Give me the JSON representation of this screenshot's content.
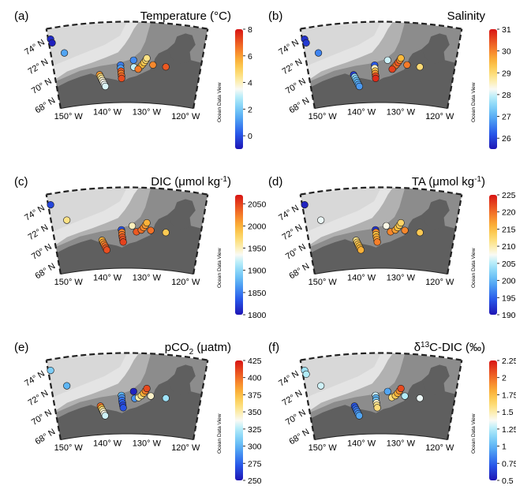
{
  "figure": {
    "watermark": "Ocean Data View",
    "lat_ticks": [
      "74° N",
      "72° N",
      "70° N",
      "68° N"
    ],
    "lon_ticks": [
      "150° W",
      "140° W",
      "130° W",
      "120° W"
    ],
    "colors": {
      "land": "#5f5f5f",
      "shelf": "#8c8c8c",
      "deep": "#e4e4e4",
      "frame": "#222222"
    }
  },
  "chart_data": [
    {
      "type": "scatter",
      "panel": "(a)",
      "title": "Temperature (°C)",
      "colorbar": {
        "min": -1,
        "max": 8,
        "ticks": [
          0,
          2,
          4,
          6,
          8
        ]
      },
      "stations": [
        {
          "lon": -151.5,
          "lat": 74.1,
          "value": -0.6
        },
        {
          "lon": -151.3,
          "lat": 73.7,
          "value": -0.8
        },
        {
          "lon": -149.0,
          "lat": 72.5,
          "value": 1.3
        },
        {
          "lon": -141.5,
          "lat": 69.9,
          "value": 6.0
        },
        {
          "lon": -141.3,
          "lat": 69.7,
          "value": 4.6
        },
        {
          "lon": -141.1,
          "lat": 69.5,
          "value": 4.2
        },
        {
          "lon": -140.9,
          "lat": 69.3,
          "value": 3.8
        },
        {
          "lon": -140.7,
          "lat": 69.1,
          "value": 3.6
        },
        {
          "lon": -140.5,
          "lat": 68.9,
          "value": 3.4
        },
        {
          "lon": -140.3,
          "lat": 68.7,
          "value": 3.2
        },
        {
          "lon": -136.5,
          "lat": 70.8,
          "value": 0.7
        },
        {
          "lon": -136.5,
          "lat": 70.5,
          "value": 1.2
        },
        {
          "lon": -136.4,
          "lat": 70.2,
          "value": 7.0
        },
        {
          "lon": -136.4,
          "lat": 69.95,
          "value": 6.5
        },
        {
          "lon": -136.3,
          "lat": 69.7,
          "value": 6.8
        },
        {
          "lon": -136.3,
          "lat": 69.45,
          "value": 7.2
        },
        {
          "lon": -133.5,
          "lat": 71.3,
          "value": 0.9
        },
        {
          "lon": -133.4,
          "lat": 70.6,
          "value": 3.0
        },
        {
          "lon": -132.0,
          "lat": 70.6,
          "value": 5.0
        },
        {
          "lon": -131.5,
          "lat": 70.85,
          "value": 5.5
        },
        {
          "lon": -131.1,
          "lat": 71.1,
          "value": 5.2
        },
        {
          "lon": -130.7,
          "lat": 71.35,
          "value": 4.8
        },
        {
          "lon": -130.5,
          "lat": 71.55,
          "value": 4.5
        },
        {
          "lon": -132.4,
          "lat": 70.4,
          "value": 6.5
        },
        {
          "lon": -129.0,
          "lat": 70.9,
          "value": 6.3
        },
        {
          "lon": -126.0,
          "lat": 70.8,
          "value": 7.0
        }
      ]
    },
    {
      "type": "scatter",
      "panel": "(b)",
      "title": "Salinity",
      "colorbar": {
        "min": 25.5,
        "max": 31,
        "ticks": [
          26,
          27,
          28,
          29,
          30,
          31
        ]
      },
      "stations": [
        {
          "lon": -151.5,
          "lat": 74.1,
          "value": 25.8
        },
        {
          "lon": -151.3,
          "lat": 73.7,
          "value": 25.9
        },
        {
          "lon": -149.0,
          "lat": 72.5,
          "value": 26.6
        },
        {
          "lon": -141.5,
          "lat": 69.9,
          "value": 25.9
        },
        {
          "lon": -141.3,
          "lat": 69.7,
          "value": 27.6
        },
        {
          "lon": -141.1,
          "lat": 69.5,
          "value": 27.4
        },
        {
          "lon": -140.9,
          "lat": 69.3,
          "value": 27.2
        },
        {
          "lon": -140.7,
          "lat": 69.1,
          "value": 27.0
        },
        {
          "lon": -140.5,
          "lat": 68.9,
          "value": 26.9
        },
        {
          "lon": -140.3,
          "lat": 68.7,
          "value": 26.8
        },
        {
          "lon": -136.5,
          "lat": 70.8,
          "value": 26.2
        },
        {
          "lon": -136.5,
          "lat": 70.5,
          "value": 28.5
        },
        {
          "lon": -136.4,
          "lat": 70.2,
          "value": 29.3
        },
        {
          "lon": -136.4,
          "lat": 69.95,
          "value": 29.8
        },
        {
          "lon": -136.3,
          "lat": 69.7,
          "value": 30.5
        },
        {
          "lon": -136.3,
          "lat": 69.45,
          "value": 30.8
        },
        {
          "lon": -133.5,
          "lat": 71.3,
          "value": 28.0
        },
        {
          "lon": -132.0,
          "lat": 70.6,
          "value": 29.8
        },
        {
          "lon": -131.5,
          "lat": 70.85,
          "value": 30.2
        },
        {
          "lon": -131.1,
          "lat": 71.1,
          "value": 30.4
        },
        {
          "lon": -130.7,
          "lat": 71.35,
          "value": 30.0
        },
        {
          "lon": -130.5,
          "lat": 71.55,
          "value": 29.5
        },
        {
          "lon": -132.4,
          "lat": 70.4,
          "value": 30.6
        },
        {
          "lon": -129.0,
          "lat": 70.9,
          "value": 30.1
        },
        {
          "lon": -126.0,
          "lat": 70.8,
          "value": 29.0
        }
      ]
    },
    {
      "type": "scatter",
      "panel": "(c)",
      "title": "DIC (μmol kg",
      "title_sup": "-1",
      "title_end": ")",
      "colorbar": {
        "min": 1800,
        "max": 2070,
        "ticks": [
          1800,
          1850,
          1900,
          1950,
          2000,
          2050
        ]
      },
      "stations": [
        {
          "lon": -151.5,
          "lat": 74.1,
          "value": 1825
        },
        {
          "lon": -148.5,
          "lat": 72.3,
          "value": 1965
        },
        {
          "lon": -140.9,
          "lat": 69.9,
          "value": 2000
        },
        {
          "lon": -140.7,
          "lat": 69.7,
          "value": 2010
        },
        {
          "lon": -140.5,
          "lat": 69.5,
          "value": 2020
        },
        {
          "lon": -140.3,
          "lat": 69.3,
          "value": 2030
        },
        {
          "lon": -140.1,
          "lat": 69.1,
          "value": 2040
        },
        {
          "lon": -139.9,
          "lat": 68.9,
          "value": 2045
        },
        {
          "lon": -136.3,
          "lat": 70.9,
          "value": 1830
        },
        {
          "lon": -136.2,
          "lat": 70.65,
          "value": 2020
        },
        {
          "lon": -136.2,
          "lat": 70.4,
          "value": 2030
        },
        {
          "lon": -136.1,
          "lat": 70.15,
          "value": 2040
        },
        {
          "lon": -136.0,
          "lat": 69.9,
          "value": 2045
        },
        {
          "lon": -135.9,
          "lat": 69.65,
          "value": 2050
        },
        {
          "lon": -133.8,
          "lat": 71.3,
          "value": 1950
        },
        {
          "lon": -132.8,
          "lat": 70.7,
          "value": 2040
        },
        {
          "lon": -131.7,
          "lat": 70.9,
          "value": 2030
        },
        {
          "lon": -131.2,
          "lat": 71.15,
          "value": 2020
        },
        {
          "lon": -130.8,
          "lat": 71.4,
          "value": 2010
        },
        {
          "lon": -130.5,
          "lat": 71.65,
          "value": 2000
        },
        {
          "lon": -129.5,
          "lat": 70.9,
          "value": 2030
        },
        {
          "lon": -126.0,
          "lat": 70.8,
          "value": 1985
        }
      ]
    },
    {
      "type": "scatter",
      "panel": "(d)",
      "title": "TA (μmol kg",
      "title_sup": "-1",
      "title_end": ")",
      "colorbar": {
        "min": 1900,
        "max": 2250,
        "ticks": [
          1900,
          1950,
          2000,
          2050,
          2100,
          2150,
          2200,
          2250
        ]
      },
      "stations": [
        {
          "lon": -151.5,
          "lat": 74.1,
          "value": 1910
        },
        {
          "lon": -148.5,
          "lat": 72.3,
          "value": 2070
        },
        {
          "lon": -140.9,
          "lat": 69.9,
          "value": 2110
        },
        {
          "lon": -140.7,
          "lat": 69.7,
          "value": 2130
        },
        {
          "lon": -140.5,
          "lat": 69.5,
          "value": 2140
        },
        {
          "lon": -140.3,
          "lat": 69.3,
          "value": 2150
        },
        {
          "lon": -140.1,
          "lat": 69.1,
          "value": 2155
        },
        {
          "lon": -139.9,
          "lat": 68.9,
          "value": 2160
        },
        {
          "lon": -136.3,
          "lat": 70.9,
          "value": 1920
        },
        {
          "lon": -136.2,
          "lat": 70.65,
          "value": 2180
        },
        {
          "lon": -136.2,
          "lat": 70.4,
          "value": 2150
        },
        {
          "lon": -136.1,
          "lat": 70.15,
          "value": 2160
        },
        {
          "lon": -136.0,
          "lat": 69.9,
          "value": 2170
        },
        {
          "lon": -135.9,
          "lat": 69.65,
          "value": 2190
        },
        {
          "lon": -133.8,
          "lat": 71.3,
          "value": 2080
        },
        {
          "lon": -132.8,
          "lat": 70.7,
          "value": 2185
        },
        {
          "lon": -131.7,
          "lat": 70.9,
          "value": 2170
        },
        {
          "lon": -131.2,
          "lat": 71.15,
          "value": 2150
        },
        {
          "lon": -130.8,
          "lat": 71.4,
          "value": 2140
        },
        {
          "lon": -130.5,
          "lat": 71.65,
          "value": 2130
        },
        {
          "lon": -129.5,
          "lat": 70.9,
          "value": 2185
        },
        {
          "lon": -126.0,
          "lat": 70.8,
          "value": 2140
        }
      ]
    },
    {
      "type": "scatter",
      "panel": "(e)",
      "title": "pCO",
      "title_sub": "2",
      "title_end": " (μatm)",
      "colorbar": {
        "min": 250,
        "max": 425,
        "ticks": [
          250,
          275,
          300,
          325,
          350,
          375,
          400,
          425
        ]
      },
      "stations": [
        {
          "lon": -151.5,
          "lat": 74.1,
          "value": 310
        },
        {
          "lon": -148.5,
          "lat": 72.3,
          "value": 300
        },
        {
          "lon": -141.3,
          "lat": 69.9,
          "value": 400
        },
        {
          "lon": -141.1,
          "lat": 69.7,
          "value": 375
        },
        {
          "lon": -140.9,
          "lat": 69.5,
          "value": 355
        },
        {
          "lon": -140.7,
          "lat": 69.3,
          "value": 345
        },
        {
          "lon": -140.5,
          "lat": 69.1,
          "value": 340
        },
        {
          "lon": -140.3,
          "lat": 68.9,
          "value": 330
        },
        {
          "lon": -136.3,
          "lat": 70.9,
          "value": 300
        },
        {
          "lon": -136.2,
          "lat": 70.65,
          "value": 290
        },
        {
          "lon": -136.2,
          "lat": 70.4,
          "value": 280
        },
        {
          "lon": -136.1,
          "lat": 70.15,
          "value": 275
        },
        {
          "lon": -136.0,
          "lat": 69.9,
          "value": 265
        },
        {
          "lon": -135.9,
          "lat": 69.65,
          "value": 270
        },
        {
          "lon": -133.5,
          "lat": 71.3,
          "value": 255
        },
        {
          "lon": -133.2,
          "lat": 70.6,
          "value": 290
        },
        {
          "lon": -132.3,
          "lat": 70.7,
          "value": 350
        },
        {
          "lon": -131.7,
          "lat": 70.9,
          "value": 360
        },
        {
          "lon": -131.2,
          "lat": 71.15,
          "value": 380
        },
        {
          "lon": -130.8,
          "lat": 71.4,
          "value": 395
        },
        {
          "lon": -130.5,
          "lat": 71.65,
          "value": 410
        },
        {
          "lon": -129.5,
          "lat": 70.9,
          "value": 345
        },
        {
          "lon": -126.0,
          "lat": 70.8,
          "value": 320
        }
      ]
    },
    {
      "type": "scatter",
      "panel": "(f)",
      "title": "δ",
      "title_sup": "13",
      "title_end": "C-DIC (‰)",
      "colorbar": {
        "min": 0.5,
        "max": 2.25,
        "ticks": [
          0.5,
          0.75,
          1,
          1.25,
          1.5,
          1.75,
          2,
          2.25
        ]
      },
      "stations": [
        {
          "lon": -151.5,
          "lat": 74.1,
          "value": 1.2
        },
        {
          "lon": -151.3,
          "lat": 73.7,
          "value": 1.25
        },
        {
          "lon": -148.5,
          "lat": 72.3,
          "value": 1.3
        },
        {
          "lon": -141.3,
          "lat": 69.9,
          "value": 0.7
        },
        {
          "lon": -141.1,
          "lat": 69.7,
          "value": 0.75
        },
        {
          "lon": -140.9,
          "lat": 69.5,
          "value": 0.8
        },
        {
          "lon": -140.7,
          "lat": 69.3,
          "value": 0.85
        },
        {
          "lon": -140.5,
          "lat": 69.1,
          "value": 0.9
        },
        {
          "lon": -140.3,
          "lat": 68.9,
          "value": 0.95
        },
        {
          "lon": -136.3,
          "lat": 70.9,
          "value": 1.3
        },
        {
          "lon": -136.2,
          "lat": 70.65,
          "value": 1.0
        },
        {
          "lon": -136.2,
          "lat": 70.4,
          "value": 1.05
        },
        {
          "lon": -136.1,
          "lat": 70.15,
          "value": 1.45
        },
        {
          "lon": -136.0,
          "lat": 69.9,
          "value": 1.55
        },
        {
          "lon": -135.9,
          "lat": 69.65,
          "value": 1.6
        },
        {
          "lon": -133.5,
          "lat": 71.3,
          "value": 0.95
        },
        {
          "lon": -132.5,
          "lat": 70.7,
          "value": 1.6
        },
        {
          "lon": -131.7,
          "lat": 70.9,
          "value": 1.7
        },
        {
          "lon": -131.2,
          "lat": 71.15,
          "value": 1.8
        },
        {
          "lon": -130.8,
          "lat": 71.4,
          "value": 1.9
        },
        {
          "lon": -130.5,
          "lat": 71.65,
          "value": 2.1
        },
        {
          "lon": -129.5,
          "lat": 70.9,
          "value": 1.25
        },
        {
          "lon": -126.0,
          "lat": 70.8,
          "value": 1.35
        }
      ]
    }
  ]
}
